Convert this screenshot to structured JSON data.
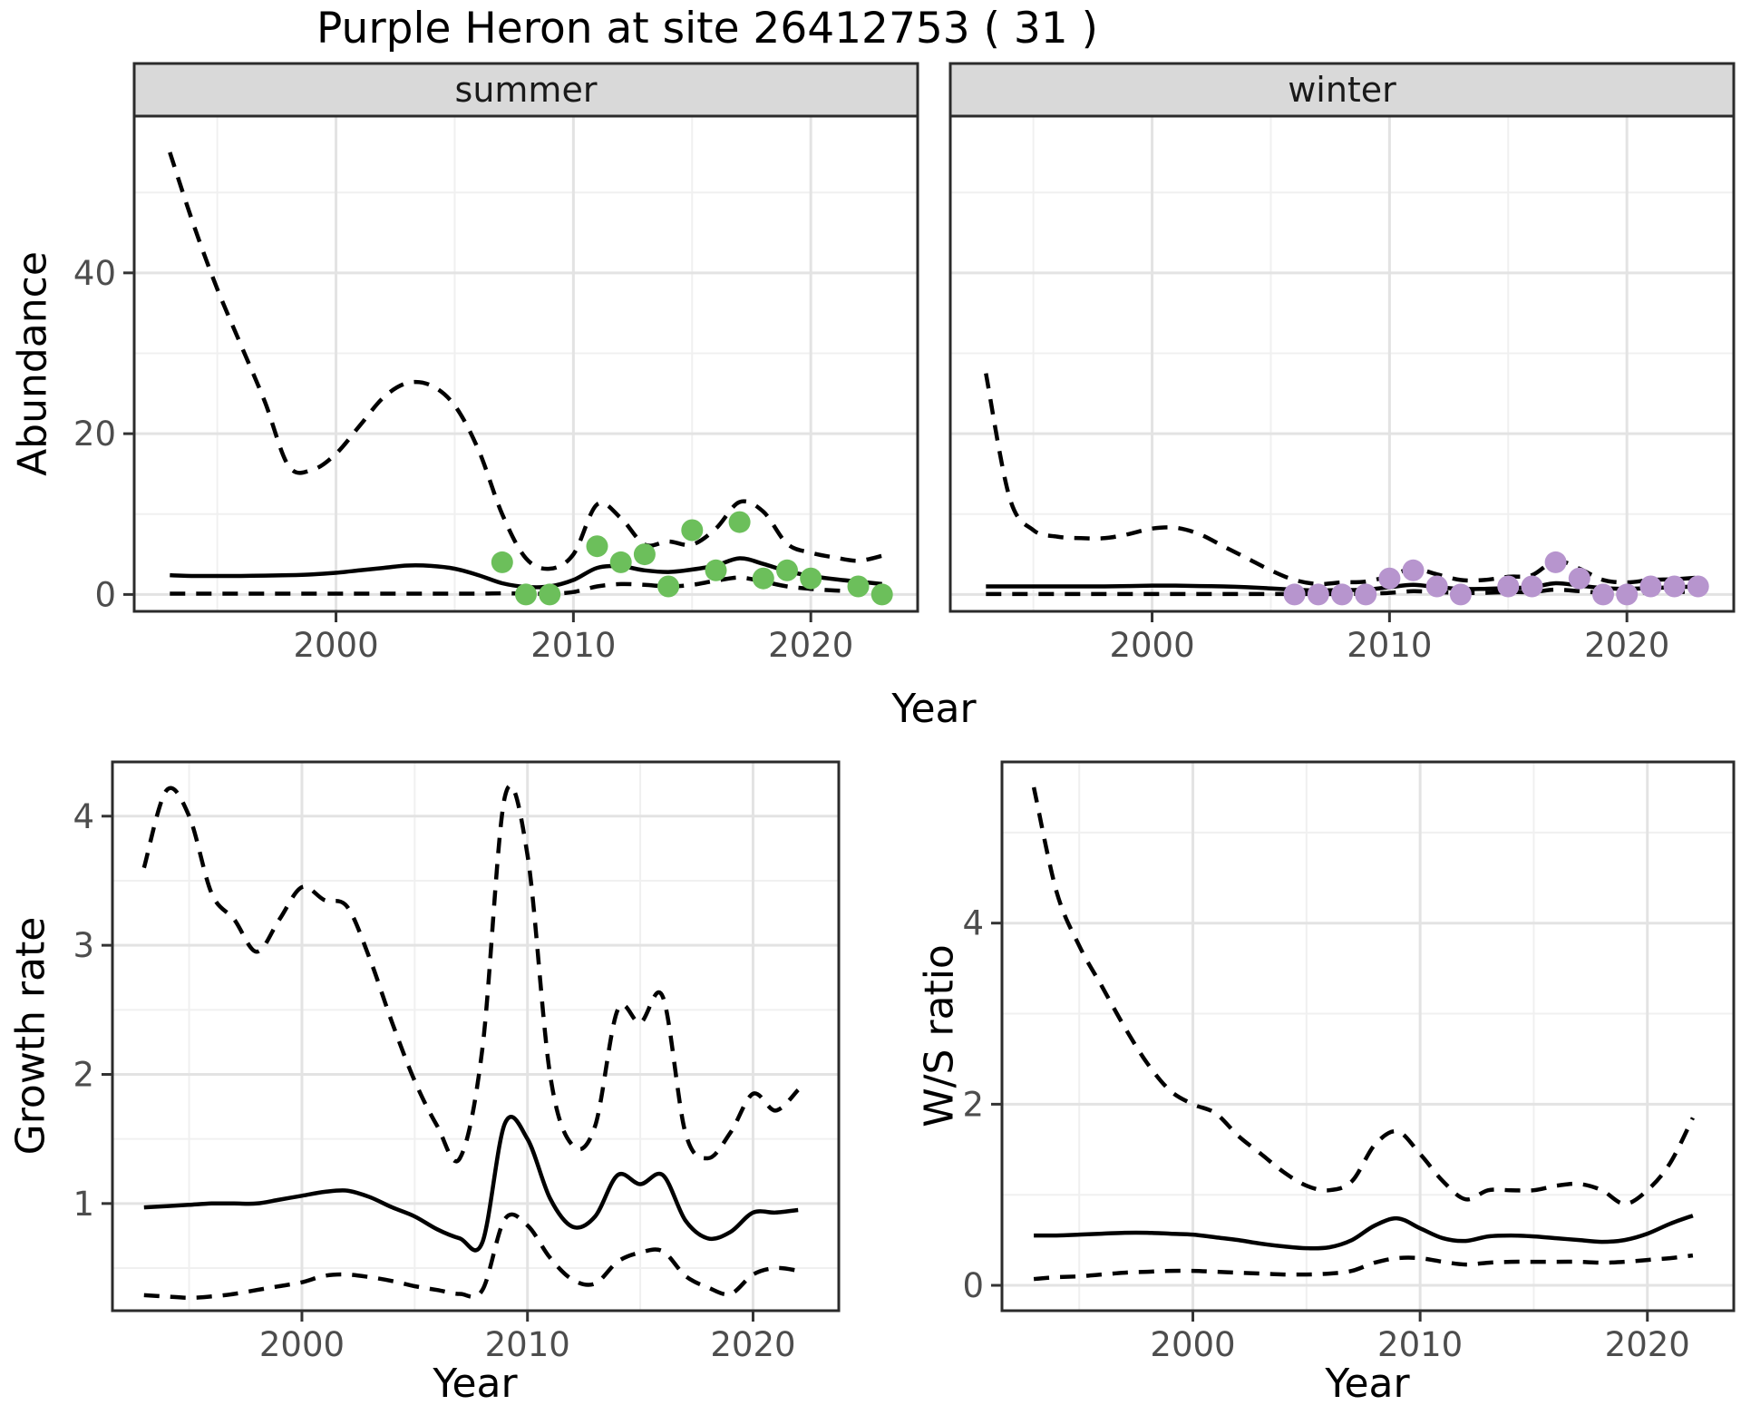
{
  "title": "Purple Heron at site 26412753 ( 31 )",
  "labels": {
    "abundance": "Abundance",
    "year": "Year",
    "growth_rate": "Growth rate",
    "ws_ratio": "W/S ratio"
  },
  "facets": {
    "summer": "summer",
    "winter": "winter"
  },
  "colors": {
    "summer_point": "#6cbf5b",
    "winter_point": "#b795ce",
    "line": "#000000",
    "strip_bg": "#d9d9d9",
    "strip_text": "#1a1a1a",
    "panel_border": "#2b2b2b",
    "grid_major": "#e3e3e3",
    "grid_minor": "#f0f0f0",
    "axis_text": "#4d4d4d",
    "tick_mark": "#333333"
  },
  "chart_data": [
    {
      "id": "abundance-summer",
      "type": "line",
      "facet_label": "summer",
      "xlabel": "Year",
      "ylabel": "Abundance",
      "xlim": [
        1991.5,
        2024.5
      ],
      "ylim": [
        -2.1,
        59.5
      ],
      "x_ticks": {
        "values": [
          2000,
          2010,
          2020
        ],
        "labels": [
          "2000",
          "2010",
          "2020"
        ],
        "minor": [
          1995,
          2005,
          2015
        ]
      },
      "y_ticks": {
        "values": [
          0,
          20,
          40
        ],
        "labels": [
          "0",
          "20",
          "40"
        ],
        "minor": [
          10,
          30,
          50
        ]
      },
      "series": [
        {
          "name": "upper-95ci",
          "linetype": "dashed",
          "x": [
            1993,
            1994,
            1995,
            1996,
            1997,
            1998,
            1999,
            2000,
            2001,
            2002,
            2003,
            2004,
            2005,
            2006,
            2007,
            2008,
            2009,
            2010,
            2011,
            2012,
            2013,
            2014,
            2015,
            2016,
            2017,
            2018,
            2019,
            2020,
            2021,
            2022,
            2023
          ],
          "y": [
            55,
            46,
            38,
            31,
            24,
            16,
            15.5,
            17.5,
            21,
            24.5,
            26.3,
            26,
            23.5,
            18,
            10,
            4.5,
            3.2,
            5,
            11.2,
            9.5,
            6.2,
            6.6,
            6.2,
            8.2,
            11.5,
            10.3,
            6.3,
            5.2,
            4.6,
            4.2,
            4.8
          ]
        },
        {
          "name": "mean",
          "linetype": "solid",
          "x": [
            1993,
            1994,
            1995,
            1996,
            1997,
            1998,
            1999,
            2000,
            2001,
            2002,
            2003,
            2004,
            2005,
            2006,
            2007,
            2008,
            2009,
            2010,
            2011,
            2012,
            2013,
            2014,
            2015,
            2016,
            2017,
            2018,
            2019,
            2020,
            2021,
            2022,
            2023
          ],
          "y": [
            2.4,
            2.3,
            2.3,
            2.3,
            2.35,
            2.4,
            2.5,
            2.7,
            3.0,
            3.3,
            3.6,
            3.55,
            3.2,
            2.4,
            1.4,
            0.95,
            1.0,
            1.8,
            3.3,
            3.5,
            3.0,
            2.8,
            3.1,
            3.6,
            4.5,
            3.8,
            2.9,
            2.3,
            1.9,
            1.6,
            1.3
          ]
        },
        {
          "name": "lower-95ci",
          "linetype": "dashed",
          "x": [
            1993,
            1994,
            1995,
            1996,
            1997,
            1998,
            1999,
            2000,
            2001,
            2002,
            2003,
            2004,
            2005,
            2006,
            2007,
            2008,
            2009,
            2010,
            2011,
            2012,
            2013,
            2014,
            2015,
            2016,
            2017,
            2018,
            2019,
            2020,
            2021,
            2022,
            2023
          ],
          "y": [
            0.1,
            0.1,
            0.1,
            0.1,
            0.1,
            0.1,
            0.1,
            0.1,
            0.1,
            0.1,
            0.1,
            0.1,
            0.1,
            0.1,
            0.15,
            0.1,
            0.1,
            0.3,
            1.0,
            1.3,
            1.2,
            1.0,
            1.2,
            1.7,
            2.1,
            1.6,
            1.0,
            0.7,
            0.5,
            0.4,
            0.4
          ]
        }
      ],
      "points": {
        "name": "observed-counts",
        "color_key": "summer_point",
        "x": [
          2007,
          2008,
          2009,
          2011,
          2012,
          2013,
          2014,
          2015,
          2016,
          2017,
          2018,
          2019,
          2020,
          2022,
          2023
        ],
        "y": [
          4,
          0,
          0,
          6,
          4,
          5,
          1,
          8,
          3,
          9,
          2,
          3,
          2,
          1,
          0
        ]
      }
    },
    {
      "id": "abundance-winter",
      "type": "line",
      "facet_label": "winter",
      "xlabel": "Year",
      "ylabel": "Abundance",
      "xlim": [
        1991.5,
        2024.5
      ],
      "ylim": [
        -2.1,
        59.5
      ],
      "x_ticks": {
        "values": [
          2000,
          2010,
          2020
        ],
        "labels": [
          "2000",
          "2010",
          "2020"
        ],
        "minor": [
          1995,
          2005,
          2015
        ]
      },
      "y_ticks": {
        "values": [
          0,
          20,
          40
        ],
        "labels": [
          "0",
          "20",
          "40"
        ],
        "minor": [
          10,
          30,
          50
        ]
      },
      "series": [
        {
          "name": "upper-95ci",
          "linetype": "dashed",
          "x": [
            1993,
            1994,
            1995,
            1996,
            1997,
            1998,
            1999,
            2000,
            2001,
            2002,
            2003,
            2004,
            2005,
            2006,
            2007,
            2008,
            2009,
            2010,
            2011,
            2012,
            2013,
            2014,
            2015,
            2016,
            2017,
            2018,
            2019,
            2020,
            2021,
            2022,
            2023
          ],
          "y": [
            27.5,
            12,
            8,
            7.2,
            7,
            7,
            7.5,
            8.2,
            8.3,
            7.5,
            6,
            4.5,
            3,
            1.8,
            1.3,
            1.5,
            1.6,
            2.3,
            3.2,
            2.5,
            1.8,
            1.8,
            2.2,
            2.4,
            4.2,
            3.2,
            1.8,
            1.5,
            1.8,
            1.9,
            2.1
          ]
        },
        {
          "name": "mean",
          "linetype": "solid",
          "x": [
            1993,
            1994,
            1995,
            1996,
            1997,
            1998,
            1999,
            2000,
            2001,
            2002,
            2003,
            2004,
            2005,
            2006,
            2007,
            2008,
            2009,
            2010,
            2011,
            2012,
            2013,
            2014,
            2015,
            2016,
            2017,
            2018,
            2019,
            2020,
            2021,
            2022,
            2023
          ],
          "y": [
            1.0,
            1.0,
            1.0,
            1.0,
            1.0,
            1.0,
            1.05,
            1.1,
            1.1,
            1.05,
            1.0,
            0.9,
            0.75,
            0.6,
            0.5,
            0.55,
            0.6,
            0.9,
            1.2,
            0.9,
            0.7,
            0.7,
            0.8,
            0.9,
            1.4,
            1.1,
            0.8,
            0.7,
            0.8,
            0.9,
            1.0
          ]
        },
        {
          "name": "lower-95ci",
          "linetype": "dashed",
          "x": [
            1993,
            1994,
            1995,
            1996,
            1997,
            1998,
            1999,
            2000,
            2001,
            2002,
            2003,
            2004,
            2005,
            2006,
            2007,
            2008,
            2009,
            2010,
            2011,
            2012,
            2013,
            2014,
            2015,
            2016,
            2017,
            2018,
            2019,
            2020,
            2021,
            2022,
            2023
          ],
          "y": [
            0.05,
            0.05,
            0.05,
            0.05,
            0.05,
            0.05,
            0.05,
            0.05,
            0.05,
            0.05,
            0.05,
            0.05,
            0.05,
            0.05,
            0.05,
            0.05,
            0.1,
            0.2,
            0.4,
            0.3,
            0.2,
            0.2,
            0.3,
            0.3,
            0.6,
            0.4,
            0.2,
            0.2,
            0.25,
            0.3,
            0.35
          ]
        }
      ],
      "points": {
        "name": "observed-counts",
        "color_key": "winter_point",
        "x": [
          2006,
          2007,
          2008,
          2009,
          2010,
          2011,
          2012,
          2013,
          2015,
          2016,
          2017,
          2018,
          2019,
          2020,
          2021,
          2022,
          2023
        ],
        "y": [
          0,
          0,
          0,
          0,
          2,
          3,
          1,
          0,
          1,
          1,
          4,
          2,
          0,
          0,
          1,
          1,
          1
        ]
      }
    },
    {
      "id": "growth-rate",
      "type": "line",
      "facet_label": null,
      "xlabel": "Year",
      "ylabel": "Growth rate",
      "xlim": [
        1991.6,
        2023.8
      ],
      "ylim": [
        0.17,
        4.42
      ],
      "x_ticks": {
        "values": [
          2000,
          2010,
          2020
        ],
        "labels": [
          "2000",
          "2010",
          "2020"
        ],
        "minor": [
          1995,
          2005,
          2015
        ]
      },
      "y_ticks": {
        "values": [
          1,
          2,
          3,
          4
        ],
        "labels": [
          "1",
          "2",
          "3",
          "4"
        ],
        "minor": [
          0.5,
          1.5,
          2.5,
          3.5
        ]
      },
      "series": [
        {
          "name": "upper-95ci",
          "linetype": "dashed",
          "x": [
            1993,
            1994,
            1995,
            1996,
            1997,
            1998,
            1999,
            2000,
            2001,
            2002,
            2003,
            2004,
            2005,
            2006,
            2007,
            2008,
            2009,
            2010,
            2011,
            2012,
            2013,
            2014,
            2015,
            2016,
            2017,
            2018,
            2019,
            2020,
            2021,
            2022
          ],
          "y": [
            3.6,
            4.2,
            4.0,
            3.4,
            3.2,
            2.95,
            3.2,
            3.45,
            3.35,
            3.3,
            2.9,
            2.4,
            1.95,
            1.6,
            1.35,
            2.2,
            4.15,
            3.7,
            2.0,
            1.45,
            1.6,
            2.5,
            2.4,
            2.6,
            1.55,
            1.35,
            1.55,
            1.85,
            1.72,
            1.88
          ]
        },
        {
          "name": "mean",
          "linetype": "solid",
          "x": [
            1993,
            1994,
            1995,
            1996,
            1997,
            1998,
            1999,
            2000,
            2001,
            2002,
            2003,
            2004,
            2005,
            2006,
            2007,
            2008,
            2009,
            2010,
            2011,
            2012,
            2013,
            2014,
            2015,
            2016,
            2017,
            2018,
            2019,
            2020,
            2021,
            2022
          ],
          "y": [
            0.97,
            0.98,
            0.99,
            1.0,
            1.0,
            1.0,
            1.03,
            1.06,
            1.09,
            1.1,
            1.05,
            0.97,
            0.9,
            0.8,
            0.73,
            0.7,
            1.62,
            1.5,
            1.04,
            0.82,
            0.9,
            1.22,
            1.15,
            1.22,
            0.87,
            0.73,
            0.78,
            0.93,
            0.93,
            0.95
          ]
        },
        {
          "name": "lower-95ci",
          "linetype": "dashed",
          "x": [
            1993,
            1994,
            1995,
            1996,
            1997,
            1998,
            1999,
            2000,
            2001,
            2002,
            2003,
            2004,
            2005,
            2006,
            2007,
            2008,
            2009,
            2010,
            2011,
            2012,
            2013,
            2014,
            2015,
            2016,
            2017,
            2018,
            2019,
            2020,
            2021,
            2022
          ],
          "y": [
            0.29,
            0.28,
            0.27,
            0.28,
            0.3,
            0.33,
            0.36,
            0.39,
            0.44,
            0.45,
            0.43,
            0.4,
            0.36,
            0.33,
            0.3,
            0.33,
            0.88,
            0.83,
            0.58,
            0.41,
            0.38,
            0.55,
            0.62,
            0.63,
            0.44,
            0.35,
            0.3,
            0.45,
            0.5,
            0.48
          ]
        }
      ],
      "points": null
    },
    {
      "id": "ws-ratio",
      "type": "line",
      "facet_label": null,
      "xlabel": "Year",
      "ylabel": "W/S ratio",
      "xlim": [
        1991.6,
        2023.8
      ],
      "ylim": [
        -0.28,
        5.78
      ],
      "x_ticks": {
        "values": [
          2000,
          2010,
          2020
        ],
        "labels": [
          "2000",
          "2010",
          "2020"
        ],
        "minor": [
          1995,
          2005,
          2015
        ]
      },
      "y_ticks": {
        "values": [
          0,
          2,
          4
        ],
        "labels": [
          "0",
          "2",
          "4"
        ],
        "minor": [
          1,
          3,
          5
        ]
      },
      "series": [
        {
          "name": "upper-95ci",
          "linetype": "dashed",
          "x": [
            1993,
            1994,
            1995,
            1996,
            1997,
            1998,
            1999,
            2000,
            2001,
            2002,
            2003,
            2004,
            2005,
            2006,
            2007,
            2008,
            2009,
            2010,
            2011,
            2012,
            2013,
            2014,
            2015,
            2016,
            2017,
            2018,
            2019,
            2020,
            2021,
            2022
          ],
          "y": [
            5.5,
            4.35,
            3.75,
            3.3,
            2.85,
            2.45,
            2.15,
            2.0,
            1.9,
            1.65,
            1.45,
            1.25,
            1.1,
            1.05,
            1.15,
            1.55,
            1.7,
            1.45,
            1.15,
            0.95,
            1.05,
            1.05,
            1.05,
            1.1,
            1.12,
            1.05,
            0.9,
            1.05,
            1.35,
            1.85
          ]
        },
        {
          "name": "mean",
          "linetype": "solid",
          "x": [
            1993,
            1994,
            1995,
            1996,
            1997,
            1998,
            1999,
            2000,
            2001,
            2002,
            2003,
            2004,
            2005,
            2006,
            2007,
            2008,
            2009,
            2010,
            2011,
            2012,
            2013,
            2014,
            2015,
            2016,
            2017,
            2018,
            2019,
            2020,
            2021,
            2022
          ],
          "y": [
            0.55,
            0.55,
            0.56,
            0.57,
            0.58,
            0.58,
            0.57,
            0.56,
            0.53,
            0.5,
            0.46,
            0.43,
            0.41,
            0.42,
            0.5,
            0.66,
            0.74,
            0.63,
            0.52,
            0.49,
            0.54,
            0.55,
            0.54,
            0.52,
            0.5,
            0.48,
            0.5,
            0.57,
            0.68,
            0.77
          ]
        },
        {
          "name": "lower-95ci",
          "linetype": "dashed",
          "x": [
            1993,
            1994,
            1995,
            1996,
            1997,
            1998,
            1999,
            2000,
            2001,
            2002,
            2003,
            2004,
            2005,
            2006,
            2007,
            2008,
            2009,
            2010,
            2011,
            2012,
            2013,
            2014,
            2015,
            2016,
            2017,
            2018,
            2019,
            2020,
            2021,
            2022
          ],
          "y": [
            0.07,
            0.09,
            0.1,
            0.12,
            0.14,
            0.15,
            0.16,
            0.16,
            0.15,
            0.14,
            0.13,
            0.12,
            0.12,
            0.13,
            0.16,
            0.25,
            0.3,
            0.3,
            0.26,
            0.23,
            0.25,
            0.26,
            0.26,
            0.26,
            0.26,
            0.25,
            0.26,
            0.28,
            0.3,
            0.33
          ]
        }
      ],
      "points": null
    }
  ]
}
